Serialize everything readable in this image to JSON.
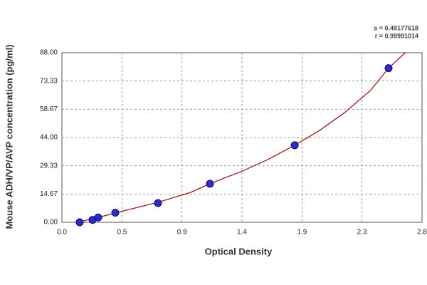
{
  "chart_data": {
    "type": "scatter",
    "x_label": "Optical Density",
    "y_label": "Mouse ADH/VP/AVP concentration (pg/ml)",
    "annotations": [
      "s = 0.49177618",
      "r = 0.99991014"
    ],
    "xlim": [
      0,
      2.8
    ],
    "xticks": [
      {
        "value": 0,
        "label": "0.0"
      },
      {
        "value": 0.467,
        "label": "0.5"
      },
      {
        "value": 0.933,
        "label": "0.9"
      },
      1.4,
      {
        "value": 1.867,
        "label": "1.9"
      },
      {
        "value": 2.333,
        "label": "2.3"
      },
      2.8
    ],
    "ylim": [
      0,
      88
    ],
    "yticks": [
      {
        "value": 0,
        "label": "0.00"
      },
      14.67,
      29.33,
      {
        "value": 44,
        "label": "44.00"
      },
      58.67,
      73.33,
      {
        "value": 88,
        "label": "88.00"
      }
    ],
    "grid": true,
    "points": {
      "color": "#2a2ad0",
      "x": [
        0.138,
        0.238,
        0.282,
        0.415,
        0.747,
        1.151,
        1.81,
        2.54
      ],
      "values": [
        0,
        1.25,
        2.5,
        5,
        10,
        20,
        40,
        80
      ]
    },
    "curve": {
      "color": "#a01818",
      "x": [
        0.12,
        0.3,
        0.5,
        0.75,
        1.0,
        1.15,
        1.4,
        1.6,
        1.81,
        2.0,
        2.2,
        2.4,
        2.54,
        2.67
      ],
      "values": [
        0,
        2.8,
        6.3,
        10.4,
        15.5,
        20,
        26.5,
        32.5,
        40,
        47.5,
        57,
        68.5,
        80,
        88
      ]
    }
  }
}
